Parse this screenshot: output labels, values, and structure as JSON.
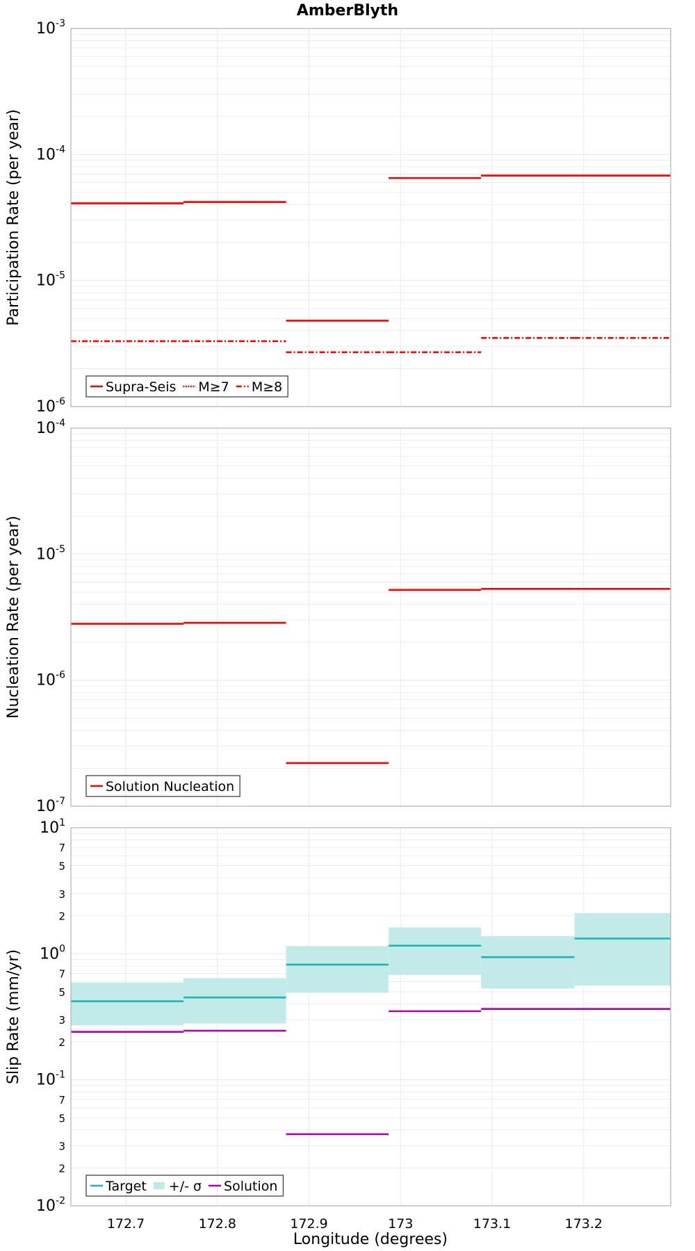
{
  "title": "AmberBlyth",
  "colors": {
    "participation": "#ff0000",
    "nucleation": "#ff0000",
    "target": "#1fb3b3",
    "sigma_fill": "#bfe9e7",
    "solution": "#b000b0",
    "grid": "#e8e8e8",
    "frame": "#b0b0b0"
  },
  "chart_data": [
    {
      "type": "line",
      "panel": "participation",
      "ylabel": "Participation Rate (per year)",
      "yscale": "log",
      "ylim": [
        1e-06,
        0.001
      ],
      "xlim": [
        172.64,
        173.295
      ],
      "ytick_labels": [
        {
          "value": 1e-06,
          "mant": "10",
          "exp": "-6"
        },
        {
          "value": 1e-05,
          "mant": "10",
          "exp": "-5"
        },
        {
          "value": 0.0001,
          "mant": "10",
          "exp": "-4"
        },
        {
          "value": 0.001,
          "mant": "10",
          "exp": "-3"
        }
      ],
      "x_edges": [
        172.64,
        172.763,
        172.875,
        172.987,
        173.088,
        173.19,
        173.295
      ],
      "series": [
        {
          "name": "Supra-Seis",
          "style": "solid",
          "values": [
            4.1e-05,
            4.2e-05,
            4.8e-06,
            6.5e-05,
            6.8e-05,
            6.8e-05
          ]
        },
        {
          "name": "M≥7",
          "style": "dotted",
          "values": [
            4.1e-05,
            4.2e-05,
            null,
            6.5e-05,
            6.8e-05,
            6.8e-05
          ]
        },
        {
          "name": "M≥8",
          "style": "dashdot",
          "values": [
            3.3e-06,
            3.3e-06,
            2.7e-06,
            2.7e-06,
            3.5e-06,
            3.5e-06
          ]
        }
      ],
      "legend": {
        "position": "bottom-left",
        "items": [
          {
            "label": "Supra-Seis",
            "style": "solid",
            "color": "#ff0000"
          },
          {
            "label": "M≥7",
            "style": "dotted",
            "color": "#ff0000"
          },
          {
            "label": "M≥8",
            "style": "dashdot",
            "color": "#ff0000"
          }
        ]
      }
    },
    {
      "type": "line",
      "panel": "nucleation",
      "ylabel": "Nucleation Rate (per year)",
      "yscale": "log",
      "ylim": [
        1e-07,
        0.0001
      ],
      "xlim": [
        172.64,
        173.295
      ],
      "ytick_labels": [
        {
          "value": 1e-07,
          "mant": "10",
          "exp": "-7"
        },
        {
          "value": 1e-06,
          "mant": "10",
          "exp": "-6"
        },
        {
          "value": 1e-05,
          "mant": "10",
          "exp": "-5"
        },
        {
          "value": 0.0001,
          "mant": "10",
          "exp": "-4"
        }
      ],
      "x_edges": [
        172.64,
        172.763,
        172.875,
        172.987,
        173.088,
        173.19,
        173.295
      ],
      "series": [
        {
          "name": "Solution Nucleation",
          "style": "solid",
          "values": [
            2.8e-06,
            2.85e-06,
            2.2e-07,
            5.2e-06,
            5.3e-06,
            5.3e-06
          ]
        }
      ],
      "legend": {
        "position": "bottom-left",
        "items": [
          {
            "label": "Solution Nucleation",
            "style": "solid",
            "color": "#ff0000"
          }
        ]
      }
    },
    {
      "type": "line",
      "panel": "slip",
      "ylabel": "Slip Rate (mm/yr)",
      "xlabel": "Longitude (degrees)",
      "yscale": "log",
      "ylim": [
        0.01,
        10
      ],
      "xlim": [
        172.64,
        173.295
      ],
      "ytick_labels": [
        {
          "value": 0.01,
          "mant": "10",
          "exp": "-2"
        },
        {
          "value": 0.1,
          "mant": "10",
          "exp": "-1"
        },
        {
          "value": 1,
          "mant": "10",
          "exp": "0"
        },
        {
          "value": 10,
          "mant": "10",
          "exp": "1"
        }
      ],
      "minor_tick_labels": [
        {
          "value": 0.02,
          "label": "2"
        },
        {
          "value": 0.03,
          "label": "3"
        },
        {
          "value": 0.05,
          "label": "5"
        },
        {
          "value": 0.07,
          "label": "7"
        },
        {
          "value": 0.2,
          "label": "2"
        },
        {
          "value": 0.3,
          "label": "3"
        },
        {
          "value": 0.5,
          "label": "5"
        },
        {
          "value": 0.7,
          "label": "7"
        },
        {
          "value": 2,
          "label": "2"
        },
        {
          "value": 3,
          "label": "3"
        },
        {
          "value": 5,
          "label": "5"
        },
        {
          "value": 7,
          "label": "7"
        }
      ],
      "xticks": [
        "172.7",
        "172.8",
        "172.9",
        "173",
        "173.1",
        "173.2"
      ],
      "xtick_values": [
        172.7,
        172.8,
        172.9,
        173.0,
        173.1,
        173.2
      ],
      "x_edges": [
        172.64,
        172.763,
        172.875,
        172.987,
        173.088,
        173.19,
        173.295
      ],
      "series": [
        {
          "name": "Target",
          "style": "solid",
          "values": [
            0.42,
            0.45,
            0.82,
            1.16,
            0.94,
            1.32
          ]
        },
        {
          "name": "+/- σ",
          "style": "band",
          "lower": [
            0.27,
            0.28,
            0.49,
            0.68,
            0.53,
            0.56
          ],
          "upper": [
            0.59,
            0.64,
            1.15,
            1.62,
            1.38,
            2.1
          ]
        },
        {
          "name": "Solution",
          "style": "solid",
          "values": [
            0.24,
            0.245,
            0.037,
            0.35,
            0.365,
            0.365
          ]
        }
      ],
      "legend": {
        "position": "bottom-left",
        "items": [
          {
            "label": "Target",
            "style": "solid",
            "color": "#1fb3b3"
          },
          {
            "label": "+/- σ",
            "style": "band",
            "color": "#bfe9e7"
          },
          {
            "label": "Solution",
            "style": "solid",
            "color": "#b000b0"
          }
        ]
      }
    }
  ]
}
